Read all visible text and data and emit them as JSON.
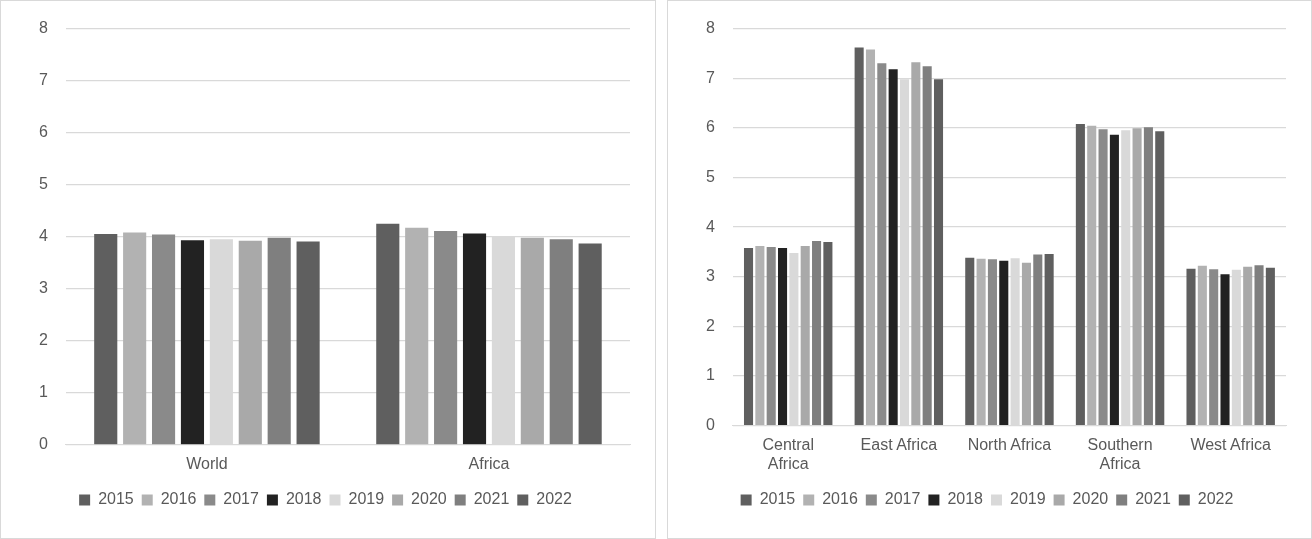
{
  "chart_data": [
    {
      "type": "bar",
      "categories": [
        "World",
        "Africa"
      ],
      "series": [
        {
          "name": "2015",
          "color": "#5f5f5f",
          "values": [
            4.05,
            4.25
          ]
        },
        {
          "name": "2016",
          "color": "#b2b2b2",
          "values": [
            4.08,
            4.17
          ]
        },
        {
          "name": "2017",
          "color": "#8a8a8a",
          "values": [
            4.04,
            4.11
          ]
        },
        {
          "name": "2018",
          "color": "#222222",
          "values": [
            3.93,
            4.06
          ]
        },
        {
          "name": "2019",
          "color": "#d9d9d9",
          "values": [
            3.95,
            4.0
          ]
        },
        {
          "name": "2020",
          "color": "#a9a9a9",
          "values": [
            3.92,
            3.98
          ]
        },
        {
          "name": "2021",
          "color": "#7f7f7f",
          "values": [
            3.98,
            3.95
          ]
        },
        {
          "name": "2022",
          "color": "#5f5f5f",
          "values": [
            3.91,
            3.87
          ]
        }
      ],
      "ylim": [
        0,
        8
      ],
      "yticks": [
        0,
        1,
        2,
        3,
        4,
        5,
        6,
        7,
        8
      ],
      "grid": "y",
      "legend": "bottom"
    },
    {
      "type": "bar",
      "categories": [
        "Central Africa",
        "East Africa",
        "North Africa",
        "Southern Africa",
        "West Africa"
      ],
      "series": [
        {
          "name": "2015",
          "color": "#5f5f5f",
          "values": [
            3.58,
            7.62,
            3.38,
            6.08,
            3.16
          ]
        },
        {
          "name": "2016",
          "color": "#b2b2b2",
          "values": [
            3.62,
            7.58,
            3.36,
            6.04,
            3.22
          ]
        },
        {
          "name": "2017",
          "color": "#8a8a8a",
          "values": [
            3.6,
            7.3,
            3.35,
            5.97,
            3.15
          ]
        },
        {
          "name": "2018",
          "color": "#222222",
          "values": [
            3.58,
            7.18,
            3.32,
            5.86,
            3.05
          ]
        },
        {
          "name": "2019",
          "color": "#d9d9d9",
          "values": [
            3.48,
            6.98,
            3.37,
            5.95,
            3.14
          ]
        },
        {
          "name": "2020",
          "color": "#a9a9a9",
          "values": [
            3.62,
            7.32,
            3.28,
            5.99,
            3.2
          ]
        },
        {
          "name": "2021",
          "color": "#7f7f7f",
          "values": [
            3.72,
            7.24,
            3.45,
            6.01,
            3.23
          ]
        },
        {
          "name": "2022",
          "color": "#5f5f5f",
          "values": [
            3.7,
            6.98,
            3.46,
            5.93,
            3.18
          ]
        }
      ],
      "ylim": [
        0,
        8
      ],
      "yticks": [
        0,
        1,
        2,
        3,
        4,
        5,
        6,
        7,
        8
      ],
      "grid": "y",
      "legend": "bottom"
    }
  ]
}
